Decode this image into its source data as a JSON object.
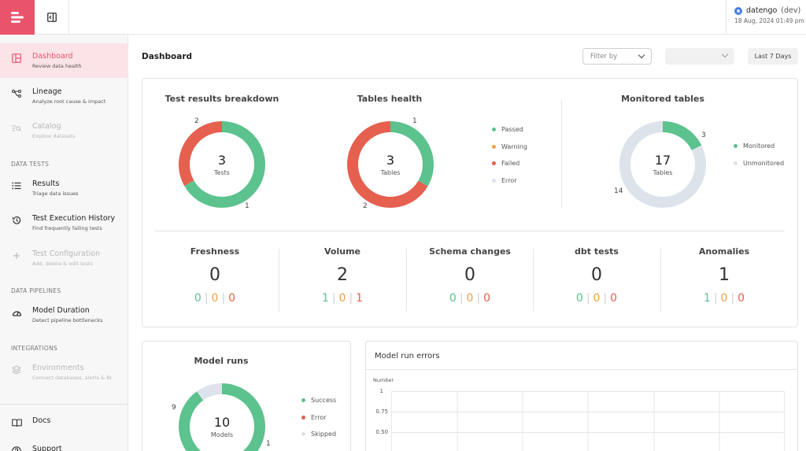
{
  "header": {
    "account_name": "datengo",
    "account_env": "(dev)",
    "datetime": "18 Aug, 2024 01:49 pm"
  },
  "sidebar": {
    "items": [
      {
        "label": "Dashboard",
        "sub": "Review data health",
        "icon": "layout-icon",
        "active": true
      },
      {
        "label": "Lineage",
        "sub": "Analyze root cause & impact",
        "icon": "lineage-icon"
      },
      {
        "label": "Catalog",
        "sub": "Explore datasets",
        "icon": "catalog-search-icon",
        "disabled": true
      },
      {
        "label": "Results",
        "sub": "Triage data issues",
        "icon": "list-icon"
      },
      {
        "label": "Test Execution History",
        "sub": "Find frequently failing tests",
        "icon": "history-icon"
      },
      {
        "label": "Test Configuration",
        "sub": "Add, delete & edit tests",
        "icon": "plus-icon",
        "disabled": true
      },
      {
        "label": "Model Duration",
        "sub": "Detect pipeline bottlenecks",
        "icon": "gauge-icon"
      },
      {
        "label": "Environments",
        "sub": "Connect databases, alerts & BI",
        "icon": "layers-icon",
        "disabled": true
      },
      {
        "label": "Docs",
        "icon": "book-icon"
      },
      {
        "label": "Support",
        "icon": "help-circle-icon"
      }
    ],
    "sections": [
      "DATA TESTS",
      "DATA PIPELINES",
      "INTEGRATIONS"
    ]
  },
  "toolbar": {
    "title": "Dashboard",
    "filter_placeholder": "Filter by",
    "date_range": "Last 7 Days"
  },
  "colors": {
    "passed": "#5cc28e",
    "warning": "#eea146",
    "failed": "#e5604f",
    "error": "#dde3eb",
    "accent": "#e9536b"
  },
  "donuts": {
    "test_results": {
      "title": "Test results breakdown",
      "total": "3",
      "unit": "Tests",
      "label_a": "2",
      "label_b": "1",
      "values": [
        2,
        1
      ]
    },
    "tables_health": {
      "title": "Tables health",
      "total": "3",
      "unit": "Tables",
      "label_a": "1",
      "label_b": "2",
      "values": [
        1,
        2
      ]
    },
    "monitored": {
      "title": "Monitored tables",
      "total": "17",
      "unit": "Tables",
      "label_a": "3",
      "label_b": "14",
      "values": [
        3,
        14
      ]
    },
    "model_runs": {
      "title": "Model runs",
      "total": "10",
      "unit": "Models",
      "label_a": "9",
      "label_b": "1",
      "values": [
        9,
        1
      ]
    }
  },
  "legends": {
    "health": [
      "Passed",
      "Warning",
      "Failed",
      "Error"
    ],
    "monitored": [
      "Monitored",
      "Unmonitored"
    ],
    "runs": [
      "Success",
      "Error",
      "Skipped"
    ]
  },
  "metrics": [
    {
      "title": "Freshness",
      "value": "0",
      "passed": "0",
      "warning": "0",
      "failed": "0"
    },
    {
      "title": "Volume",
      "value": "2",
      "passed": "1",
      "warning": "0",
      "failed": "1"
    },
    {
      "title": "Schema changes",
      "value": "0",
      "passed": "0",
      "warning": "0",
      "failed": "0"
    },
    {
      "title": "dbt tests",
      "value": "0",
      "passed": "0",
      "warning": "0",
      "failed": "0"
    },
    {
      "title": "Anomalies",
      "value": "1",
      "passed": "1",
      "warning": "0",
      "failed": "0"
    }
  ],
  "errors_chart": {
    "title": "Model run errors",
    "axis_label": "Number",
    "ticks": [
      "1",
      "0.75",
      "0.50"
    ]
  }
}
